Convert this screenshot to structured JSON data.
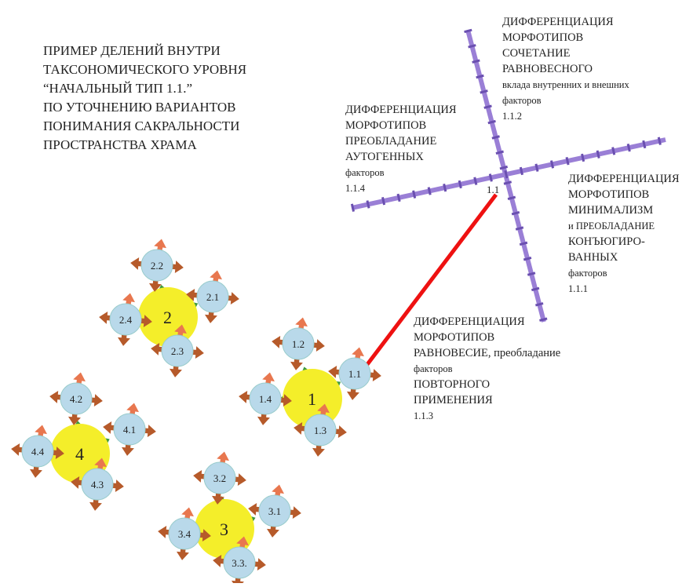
{
  "title": [
    "ПРИМЕР ДЕЛЕНИЙ ВНУТРИ",
    "ТАКСОНОМИЧЕСКОГО УРОВНЯ",
    "“НАЧАЛЬНЫЙ ТИП 1.1.”",
    "ПО УТОЧНЕНИЮ ВАРИАНТОВ",
    "ПОНИМАНИЯ САКРАЛЬНОСТИ",
    "ПРОСТРАНСТВА ХРАМА"
  ],
  "cross_label": "1.1",
  "branches": [
    {
      "lines": [
        "ДИФФЕРЕНЦИАЦИЯ",
        "МОРФОТИПОВ",
        "СОЧЕТАНИЕ",
        "РАВНОВЕСНОГО",
        "вклада внутренних и внешних",
        "факторов",
        "1.1.2"
      ]
    },
    {
      "lines": [
        "ДИФФЕРЕНЦИАЦИЯ",
        "МОРФОТИПОВ",
        "ПРЕОБЛАДАНИЕ",
        "АУТОГЕННЫХ",
        "факторов",
        "1.1.4"
      ]
    },
    {
      "lines": [
        "ДИФФЕРЕНЦИАЦИЯ",
        "МОРФОТИПОВ",
        "МИНИМАЛИЗМ",
        "и ПРЕОБЛАДАНИЕ",
        "КОНЪЮГИРО-",
        "ВАННЫХ",
        "факторов",
        "1.1.1"
      ]
    },
    {
      "lines": [
        "ДИФФЕРЕНЦИАЦИЯ",
        "МОРФОТИПОВ",
        "РАВНОВЕСИЕ, преобладание",
        "факторов",
        "ПОВТОРНОГО",
        "ПРИМЕНЕНИЯ",
        "1.1.3"
      ]
    }
  ],
  "clusters": [
    {
      "label": "1",
      "subs": [
        "1.1",
        "1.2",
        "1.3",
        "1.4"
      ]
    },
    {
      "label": "2",
      "subs": [
        "2.1",
        "2.2",
        "2.3",
        "2.4"
      ]
    },
    {
      "label": "4",
      "subs": [
        "4.1",
        "4.2",
        "4.3",
        "4.4"
      ]
    },
    {
      "label": "3",
      "subs": [
        "3.1",
        "3.2",
        "3.3.",
        "3.4"
      ]
    }
  ]
}
